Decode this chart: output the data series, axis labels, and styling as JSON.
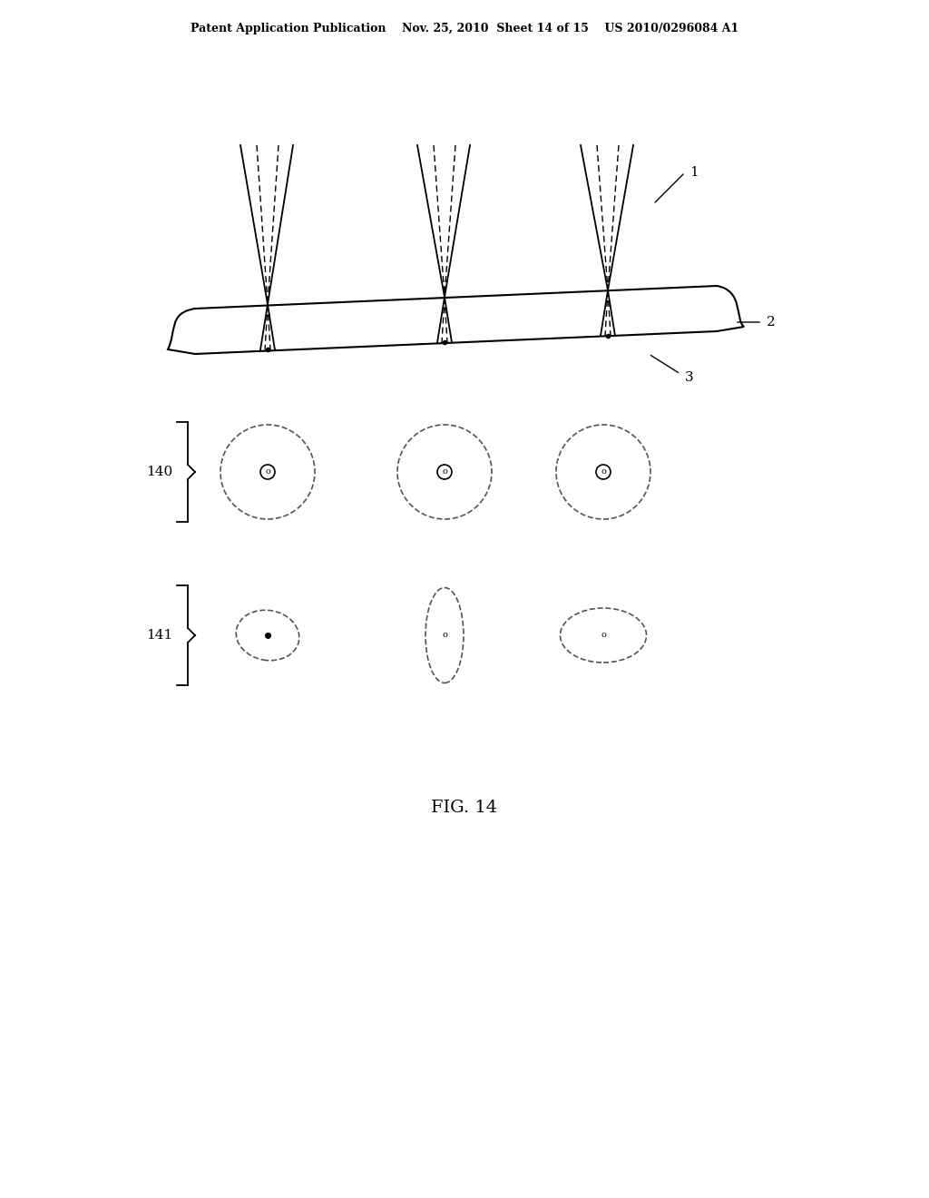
{
  "bg_color": "#ffffff",
  "header_text": "Patent Application Publication    Nov. 25, 2010  Sheet 14 of 15    US 2010/0296084 A1",
  "figure_label": "FIG. 14",
  "label_1": "1",
  "label_2": "2",
  "label_3": "3",
  "label_140": "140",
  "label_141": "141",
  "line_color": "#000000",
  "dashed_color": "#555555"
}
